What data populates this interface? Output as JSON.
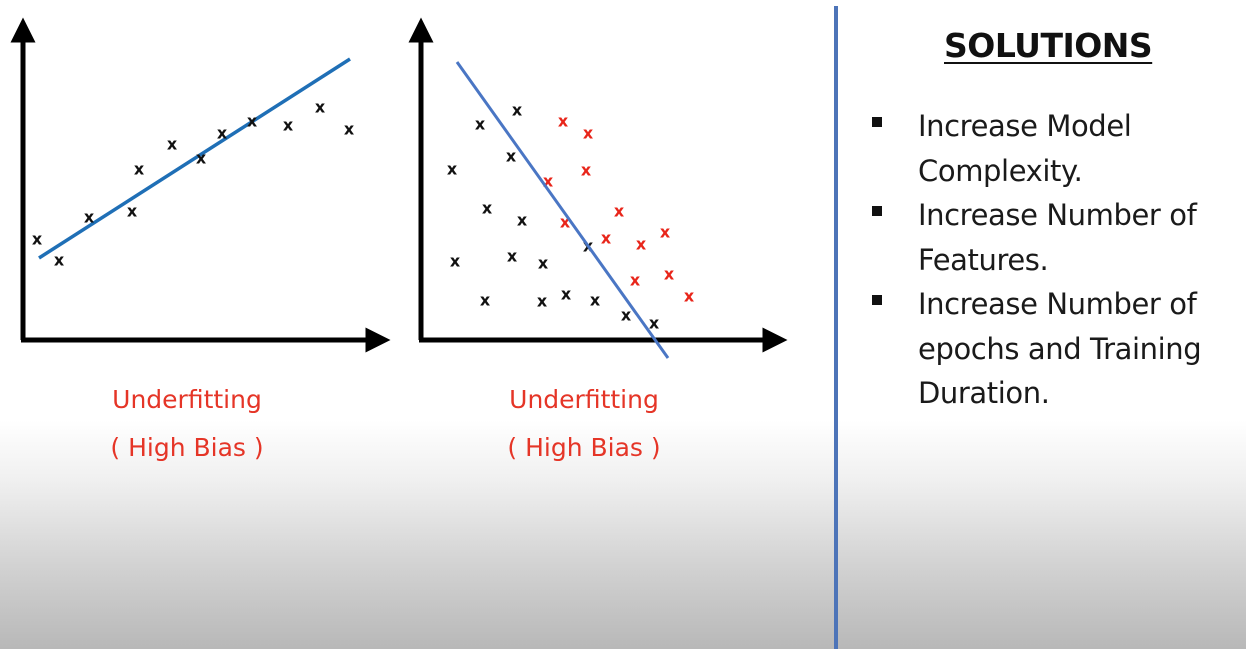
{
  "plots": [
    {
      "caption_line1": "Underfitting",
      "caption_line2": "( High Bias )",
      "marker": "x",
      "points_color": "#111111"
    },
    {
      "caption_line1": "Underfitting",
      "caption_line2": "( High Bias )",
      "marker": "x",
      "class_a_color": "#111111",
      "class_b_color": "#e8251a"
    }
  ],
  "colors": {
    "line_left": "#1f6fb6",
    "line_right": "#4a76c4",
    "caption": "#e53527",
    "divider": "#4d74b8"
  },
  "solutions": {
    "title": "SOLUTIONS",
    "items": [
      {
        "text": "Increase Model Complexity."
      },
      {
        "text": "Increase Number of Features."
      },
      {
        "text": "Increase Number of epochs and Training Duration."
      }
    ]
  }
}
